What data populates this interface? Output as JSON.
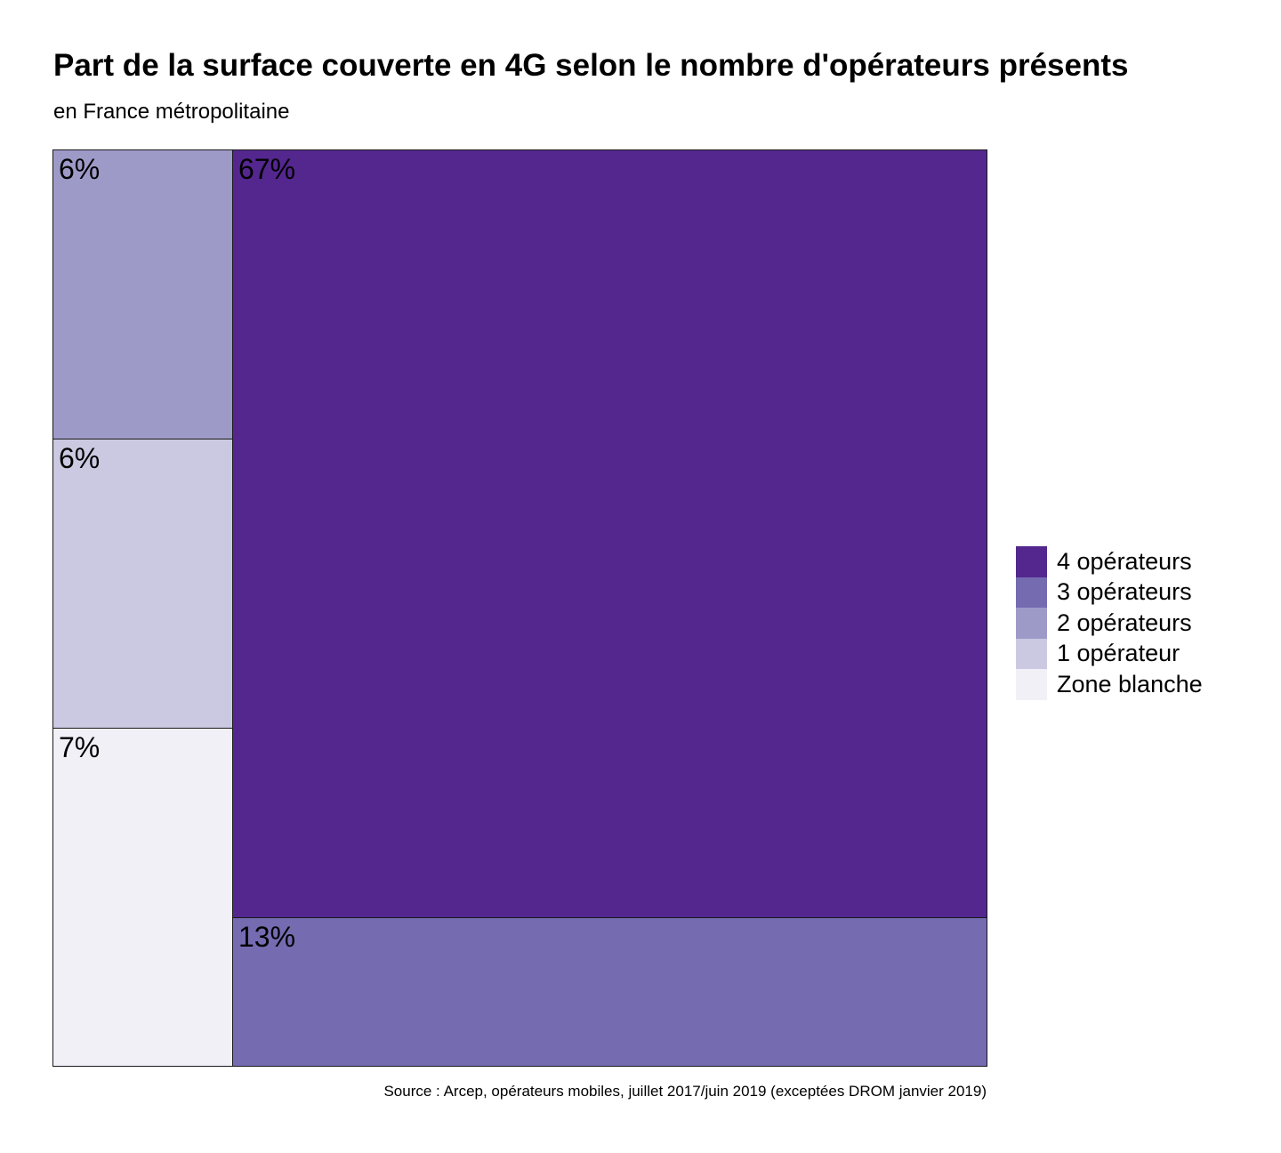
{
  "title": "Part de la surface couverte en 4G selon le nombre d'opérateurs présents",
  "subtitle": "en France métropolitaine",
  "source": "Source : Arcep, opérateurs mobiles, juillet 2017/juin 2019 (exceptées DROM janvier 2019)",
  "legend": [
    {
      "label": "4 opérateurs",
      "color": "#54278f"
    },
    {
      "label": "3 opérateurs",
      "color": "#756bb1"
    },
    {
      "label": "2 opérateurs",
      "color": "#9e9ac8"
    },
    {
      "label": "1 opérateur",
      "color": "#cbc9e2"
    },
    {
      "label": "Zone blanche",
      "color": "#f2f0f7"
    }
  ],
  "chart_data": {
    "type": "treemap",
    "title": "Part de la surface couverte en 4G selon le nombre d'opérateurs présents",
    "subtitle": "en France métropolitaine",
    "unit": "%",
    "series": [
      {
        "name": "4 opérateurs",
        "value": 67,
        "label": "67%",
        "color": "#54278f"
      },
      {
        "name": "3 opérateurs",
        "value": 13,
        "label": "13%",
        "color": "#756bb1"
      },
      {
        "name": "2 opérateurs",
        "value": 6,
        "label": "6%",
        "color": "#9e9ac8"
      },
      {
        "name": "1 opérateur",
        "value": 6,
        "label": "6%",
        "color": "#cbc9e2"
      },
      {
        "name": "Zone blanche",
        "value": 7,
        "label": "7%",
        "color": "#f2f0f7"
      }
    ],
    "legend_position": "right"
  }
}
